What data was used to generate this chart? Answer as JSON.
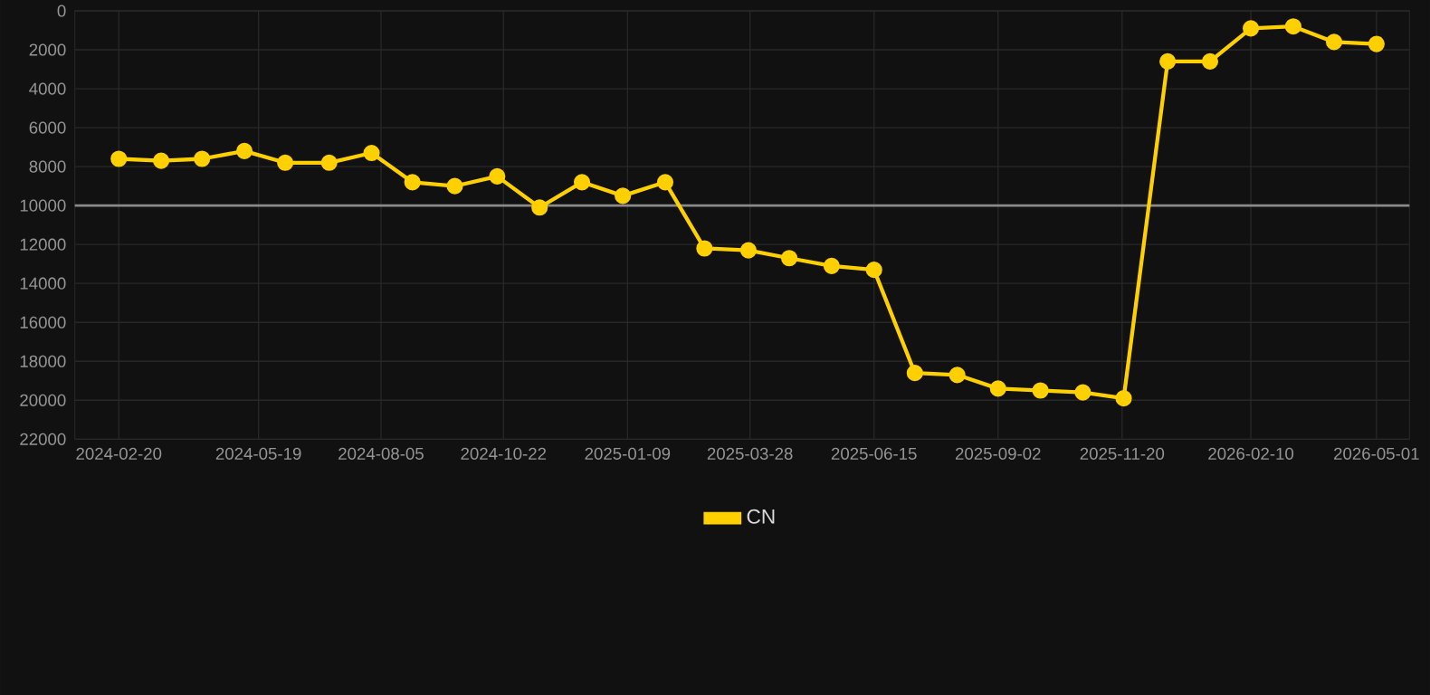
{
  "chart_data": {
    "type": "line",
    "x": [
      "2024-02-20",
      "2024-03-18",
      "2024-04-13",
      "2024-05-10",
      "2024-06-05",
      "2024-07-03",
      "2024-07-30",
      "2024-08-25",
      "2024-09-21",
      "2024-10-18",
      "2024-11-14",
      "2024-12-11",
      "2025-01-06",
      "2025-02-02",
      "2025-02-27",
      "2025-03-27",
      "2025-04-22",
      "2025-05-19",
      "2025-06-15",
      "2025-07-11",
      "2025-08-07",
      "2025-09-02",
      "2025-09-29",
      "2025-10-26",
      "2025-11-21",
      "2025-12-19",
      "2026-01-15",
      "2026-02-10",
      "2026-03-09",
      "2026-04-04",
      "2026-05-01"
    ],
    "series": [
      {
        "name": "CN",
        "color": "#ffd000",
        "values": [
          7600,
          7700,
          7600,
          7200,
          7800,
          7800,
          7300,
          8800,
          9000,
          8500,
          10100,
          8800,
          9500,
          8800,
          12200,
          12300,
          12700,
          13100,
          13300,
          18600,
          18700,
          19400,
          19500,
          19600,
          19900,
          2600,
          2600,
          900,
          800,
          1600,
          1700
        ]
      }
    ],
    "xlim": [
      "2024-01-23",
      "2026-05-22"
    ],
    "xticks": [
      "2024-02-20",
      "2024-05-19",
      "2024-08-05",
      "2024-10-22",
      "2025-01-09",
      "2025-03-28",
      "2025-06-15",
      "2025-09-02",
      "2025-11-20",
      "2026-02-10",
      "2026-05-01"
    ],
    "ylim": [
      22000,
      0
    ],
    "yticks": [
      0,
      2000,
      4000,
      6000,
      8000,
      10000,
      12000,
      14000,
      16000,
      18000,
      20000,
      22000
    ],
    "ref_lines": [
      {
        "axis": "y",
        "value": 10000,
        "color": "#8a8a8a"
      }
    ],
    "grid": true,
    "legend": "bottom",
    "marker": "circle",
    "line_style": "solid"
  }
}
